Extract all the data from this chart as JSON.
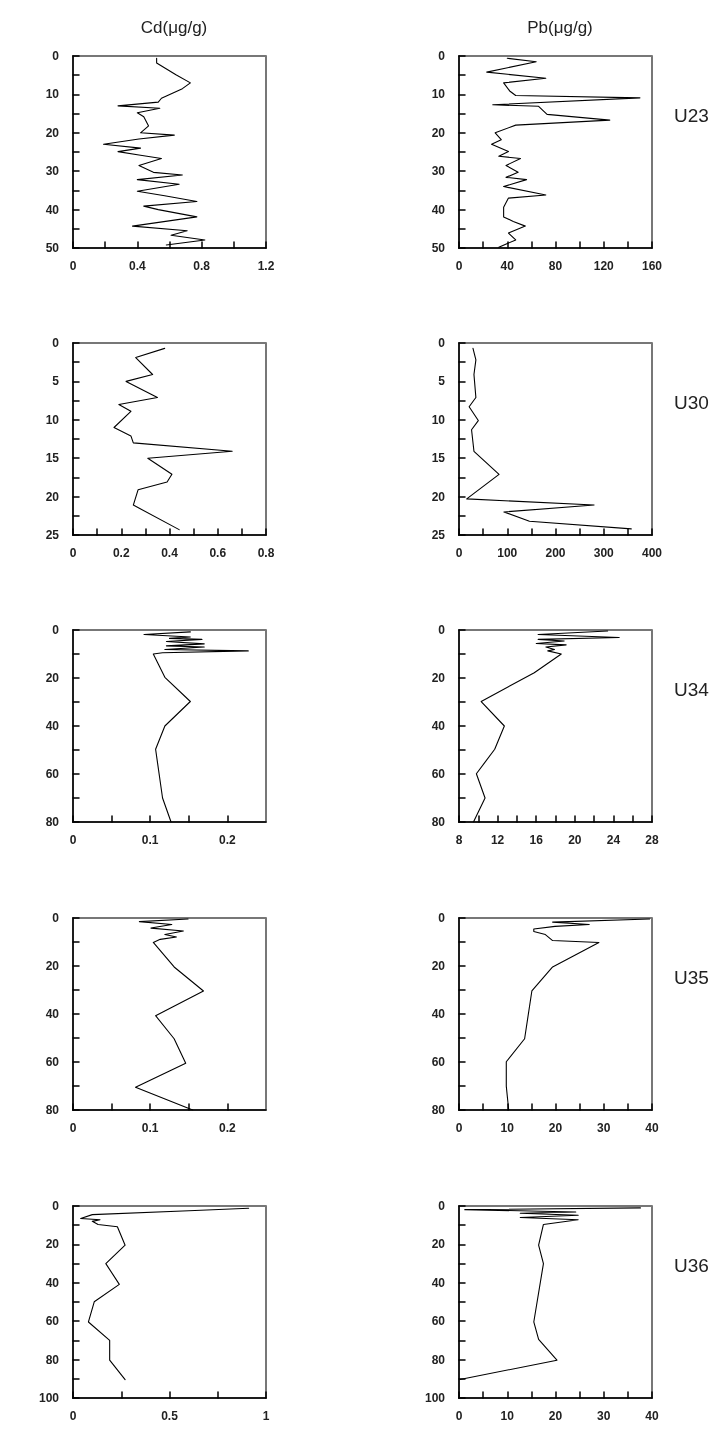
{
  "chart_data": [
    {
      "type": "line",
      "title": "Cd(μg/g)",
      "xlim": [
        0,
        1.2
      ],
      "xticks": [
        0,
        {
          "value": 0.2,
          "label": null
        },
        0.4,
        {
          "value": 0.6,
          "label": null
        },
        0.8,
        {
          "value": 1.0,
          "label": null
        },
        1.2
      ],
      "ylim": [
        50,
        0
      ],
      "yticks": [
        0,
        {
          "value": 5,
          "label": null
        },
        10,
        {
          "value": 15,
          "label": null
        },
        20,
        {
          "value": 25,
          "label": null
        },
        30,
        {
          "value": 35,
          "label": null
        },
        40,
        {
          "value": 45,
          "label": null
        },
        50
      ],
      "series": [
        {
          "color": "#000000",
          "x": [
            0.52,
            0.52,
            0.64,
            0.73,
            0.68,
            0.55,
            0.53,
            0.28,
            0.54,
            0.4,
            0.44,
            0.47,
            0.42,
            0.63,
            0.41,
            0.19,
            0.42,
            0.28,
            0.41,
            0.55,
            0.41,
            0.5,
            0.68,
            0.4,
            0.66,
            0.4,
            0.57,
            0.77,
            0.44,
            0.53,
            0.77,
            0.37,
            0.71,
            0.61,
            0.82,
            0.58
          ],
          "values": [
            0.6,
            1.8,
            4.9,
            7,
            8.5,
            11,
            12,
            13,
            13.6,
            14.8,
            15.8,
            18.2,
            20,
            20.6,
            21.6,
            23,
            24,
            24.9,
            25.8,
            26.7,
            28.5,
            30.3,
            31,
            32.2,
            33.4,
            35.2,
            36.4,
            37.9,
            39.1,
            40,
            41.9,
            44.3,
            45.5,
            46.7,
            47.9,
            49.2
          ]
        }
      ]
    },
    {
      "type": "line",
      "title": "Pb(μg/g)",
      "annotations": [
        "U23"
      ],
      "xlim": [
        0,
        160
      ],
      "xticks": [
        0,
        {
          "value": 20,
          "label": null
        },
        40,
        {
          "value": 60,
          "label": null
        },
        80,
        {
          "value": 100,
          "label": null
        },
        120,
        {
          "value": 140,
          "label": null
        },
        160
      ],
      "ylim": [
        50,
        0
      ],
      "yticks": [
        0,
        {
          "value": 5,
          "label": null
        },
        10,
        {
          "value": 15,
          "label": null
        },
        20,
        {
          "value": 25,
          "label": null
        },
        30,
        {
          "value": 35,
          "label": null
        },
        40,
        {
          "value": 45,
          "label": null
        },
        50
      ],
      "series": [
        {
          "color": "#000000",
          "x": [
            40,
            64,
            23,
            72,
            37,
            42,
            47,
            150,
            28,
            66,
            73,
            125,
            47,
            30,
            35,
            27,
            41,
            33,
            51,
            39,
            49,
            39,
            56,
            37,
            72,
            41,
            37,
            37,
            45,
            55,
            41,
            47,
            33
          ],
          "values": [
            0.6,
            1.5,
            4.2,
            5.8,
            7,
            9.1,
            10.3,
            10.9,
            12.7,
            13.1,
            15.2,
            16.7,
            18,
            20,
            21.8,
            23,
            24.9,
            26.1,
            26.7,
            28.5,
            30.3,
            31.6,
            32.2,
            34,
            36.2,
            37,
            39.4,
            41.9,
            43.1,
            44.3,
            46.1,
            47.9,
            49.8
          ]
        }
      ]
    },
    {
      "type": "line",
      "xlim": [
        0,
        0.8
      ],
      "xticks": [
        0,
        {
          "value": 0.1,
          "label": null
        },
        0.2,
        {
          "value": 0.3,
          "label": null
        },
        0.4,
        {
          "value": 0.5,
          "label": null
        },
        0.6,
        {
          "value": 0.7,
          "label": null
        },
        0.8
      ],
      "ylim": [
        25,
        0
      ],
      "yticks": [
        0,
        {
          "value": 2.5,
          "label": null
        },
        5,
        {
          "value": 7.5,
          "label": null
        },
        10,
        {
          "value": 12.5,
          "label": null
        },
        15,
        {
          "value": 17.5,
          "label": null
        },
        20,
        {
          "value": 22.5,
          "label": null
        },
        25
      ],
      "series": [
        {
          "color": "#000000",
          "x": [
            0.38,
            0.26,
            0.33,
            0.22,
            0.35,
            0.19,
            0.24,
            0.17,
            0.24,
            0.25,
            0.66,
            0.31,
            0.41,
            0.39,
            0.27,
            0.25,
            0.44
          ],
          "values": [
            0.7,
            1.9,
            4.1,
            5,
            7.1,
            8,
            8.9,
            11,
            12.1,
            13,
            14.1,
            15,
            17.1,
            18.1,
            19.1,
            21.1,
            24.3
          ]
        }
      ]
    },
    {
      "type": "line",
      "annotations": [
        "U30"
      ],
      "xlim": [
        0,
        400
      ],
      "xticks": [
        0,
        {
          "value": 50,
          "label": null
        },
        100,
        {
          "value": 150,
          "label": null
        },
        200,
        {
          "value": 250,
          "label": null
        },
        300,
        {
          "value": 350,
          "label": null
        },
        400
      ],
      "ylim": [
        25,
        0
      ],
      "yticks": [
        0,
        {
          "value": 2.5,
          "label": null
        },
        5,
        {
          "value": 7.5,
          "label": null
        },
        10,
        {
          "value": 12.5,
          "label": null
        },
        15,
        {
          "value": 17.5,
          "label": null
        },
        20,
        {
          "value": 22.5,
          "label": null
        },
        25
      ],
      "series": [
        {
          "color": "#000000",
          "x": [
            29,
            35,
            31,
            35,
            21,
            40,
            26,
            31,
            83,
            16,
            280,
            93,
            146,
            357
          ],
          "values": [
            0.7,
            2.2,
            4.1,
            7.1,
            8.3,
            10.1,
            11.3,
            14.1,
            17.1,
            20.3,
            21.1,
            22,
            23.2,
            24.2
          ]
        }
      ]
    },
    {
      "type": "line",
      "xlim": [
        0,
        0.25
      ],
      "xticks": [
        0,
        {
          "value": 0.05,
          "label": null
        },
        0.1,
        {
          "value": 0.15,
          "label": null
        },
        0.2
      ],
      "ylim": [
        80,
        0
      ],
      "yticks": [
        0,
        {
          "value": 10,
          "label": null
        },
        20,
        {
          "value": 30,
          "label": null
        },
        40,
        {
          "value": 50,
          "label": null
        },
        60,
        {
          "value": 70,
          "label": null
        },
        80
      ],
      "series": [
        {
          "color": "#000000",
          "x": [
            0.152,
            0.092,
            0.152,
            0.125,
            0.167,
            0.121,
            0.17,
            0.121,
            0.17,
            0.119,
            0.227,
            0.116,
            0.104,
            0.119,
            0.152,
            0.119,
            0.107,
            0.116,
            0.127
          ],
          "values": [
            0.8,
            1.9,
            2.9,
            3.5,
            3.9,
            4.8,
            5.8,
            6.6,
            7.1,
            8.1,
            8.7,
            9.5,
            10,
            19.7,
            29.8,
            40,
            49.7,
            70,
            80
          ]
        }
      ]
    },
    {
      "type": "line",
      "annotations": [
        "U34"
      ],
      "xlim": [
        8,
        28
      ],
      "xticks": [
        8,
        {
          "value": 10,
          "label": null
        },
        12,
        {
          "value": 14,
          "label": null
        },
        16,
        {
          "value": 18,
          "label": null
        },
        20,
        {
          "value": 22,
          "label": null
        },
        24,
        {
          "value": 26,
          "label": null
        },
        28
      ],
      "ylim": [
        80,
        0
      ],
      "yticks": [
        0,
        {
          "value": 10,
          "label": null
        },
        20,
        {
          "value": 30,
          "label": null
        },
        40,
        {
          "value": 50,
          "label": null
        },
        60,
        {
          "value": 70,
          "label": null
        },
        80
      ],
      "series": [
        {
          "color": "#000000",
          "x": [
            23.4,
            16.2,
            24.6,
            16.2,
            18.9,
            16,
            19.1,
            17,
            17.9,
            17.2,
            18.6,
            15.8,
            10.3,
            12.7,
            11.7,
            9.8,
            10.7,
            9.5
          ],
          "values": [
            0.4,
            1.9,
            3.1,
            3.9,
            4.6,
            5.6,
            6.2,
            7.1,
            8.1,
            8.7,
            10,
            17.8,
            29.8,
            40,
            49.7,
            59.9,
            70,
            80
          ]
        }
      ]
    },
    {
      "type": "line",
      "xlim": [
        0,
        0.25
      ],
      "xticks": [
        0,
        {
          "value": 0.05,
          "label": null
        },
        0.1,
        {
          "value": 0.15,
          "label": null
        },
        0.2
      ],
      "ylim": [
        80,
        0
      ],
      "yticks": [
        0,
        {
          "value": 10,
          "label": null
        },
        20,
        {
          "value": 30,
          "label": null
        },
        40,
        {
          "value": 50,
          "label": null
        },
        60,
        {
          "value": 70,
          "label": null
        },
        80
      ],
      "series": [
        {
          "color": "#000000",
          "x": [
            0.149,
            0.086,
            0.128,
            0.101,
            0.143,
            0.119,
            0.134,
            0.113,
            0.104,
            0.131,
            0.169,
            0.107,
            0.131,
            0.146,
            0.081,
            0.155
          ],
          "values": [
            0.4,
            1.5,
            2.7,
            4.2,
            5.4,
            6.9,
            7.9,
            8.9,
            10.2,
            20.4,
            30.4,
            40.7,
            50.3,
            60.5,
            70.5,
            80
          ]
        }
      ]
    },
    {
      "type": "line",
      "annotations": [
        "U35"
      ],
      "xlim": [
        0,
        40
      ],
      "xticks": [
        0,
        {
          "value": 5,
          "label": null
        },
        10,
        {
          "value": 15,
          "label": null
        },
        20,
        {
          "value": 25,
          "label": null
        },
        30,
        {
          "value": 35,
          "label": null
        },
        40
      ],
      "ylim": [
        80,
        0
      ],
      "yticks": [
        0,
        {
          "value": 10,
          "label": null
        },
        20,
        {
          "value": 30,
          "label": null
        },
        40,
        {
          "value": 50,
          "label": null
        },
        60,
        {
          "value": 70,
          "label": null
        },
        80
      ],
      "series": [
        {
          "color": "#000000",
          "x": [
            39.5,
            19.4,
            27,
            19.9,
            15.5,
            15.5,
            17.9,
            19.4,
            29,
            19.4,
            15.1,
            13.6,
            9.8,
            9.8,
            10.3
          ],
          "values": [
            0.4,
            1.7,
            2.7,
            3.5,
            4.6,
            5.6,
            6.9,
            9.4,
            10.2,
            20.4,
            30.4,
            50.3,
            59.9,
            70.1,
            80
          ]
        }
      ]
    },
    {
      "type": "line",
      "xlim": [
        0,
        1
      ],
      "xticks": [
        0,
        {
          "value": 0.25,
          "label": null
        },
        0.5,
        {
          "value": 0.75,
          "label": null
        },
        1
      ],
      "ylim": [
        100,
        0
      ],
      "yticks": [
        0,
        {
          "value": 10,
          "label": null
        },
        20,
        {
          "value": 30,
          "label": null
        },
        40,
        {
          "value": 50,
          "label": null
        },
        60,
        {
          "value": 70,
          "label": null
        },
        80,
        {
          "value": 90,
          "label": null
        },
        100
      ],
      "series": [
        {
          "color": "#000000",
          "x": [
            0.91,
            0.6,
            0.1,
            0.04,
            0.14,
            0.1,
            0.13,
            0.23,
            0.27,
            0.17,
            0.24,
            0.11,
            0.08,
            0.19,
            0.19,
            0.27
          ],
          "values": [
            1.2,
            2.5,
            4.5,
            6.5,
            7.2,
            8,
            9.6,
            10.8,
            20.4,
            30,
            40.8,
            49.9,
            60.4,
            70,
            80.3,
            90.4
          ]
        }
      ]
    },
    {
      "type": "line",
      "annotations": [
        "U36"
      ],
      "xlim": [
        0,
        40
      ],
      "xticks": [
        0,
        {
          "value": 5,
          "label": null
        },
        10,
        {
          "value": 15,
          "label": null
        },
        20,
        {
          "value": 25,
          "label": null
        },
        30,
        {
          "value": 35,
          "label": null
        },
        40
      ],
      "ylim": [
        100,
        0
      ],
      "yticks": [
        0,
        {
          "value": 10,
          "label": null
        },
        20,
        {
          "value": 30,
          "label": null
        },
        40,
        {
          "value": 50,
          "label": null
        },
        60,
        {
          "value": 70,
          "label": null
        },
        80,
        {
          "value": 90,
          "label": null
        },
        100
      ],
      "series": [
        {
          "color": "#000000",
          "x": [
            37.6,
            1.2,
            24.2,
            12.7,
            24.7,
            12.7,
            24.7,
            17.5,
            16.5,
            17.5,
            15.5,
            16.5,
            20.3,
            0.2
          ],
          "values": [
            1,
            1.9,
            3.1,
            3.8,
            4.8,
            6,
            7.2,
            9.6,
            20.4,
            30,
            60.4,
            69.5,
            80.3,
            90.4
          ]
        }
      ]
    }
  ]
}
